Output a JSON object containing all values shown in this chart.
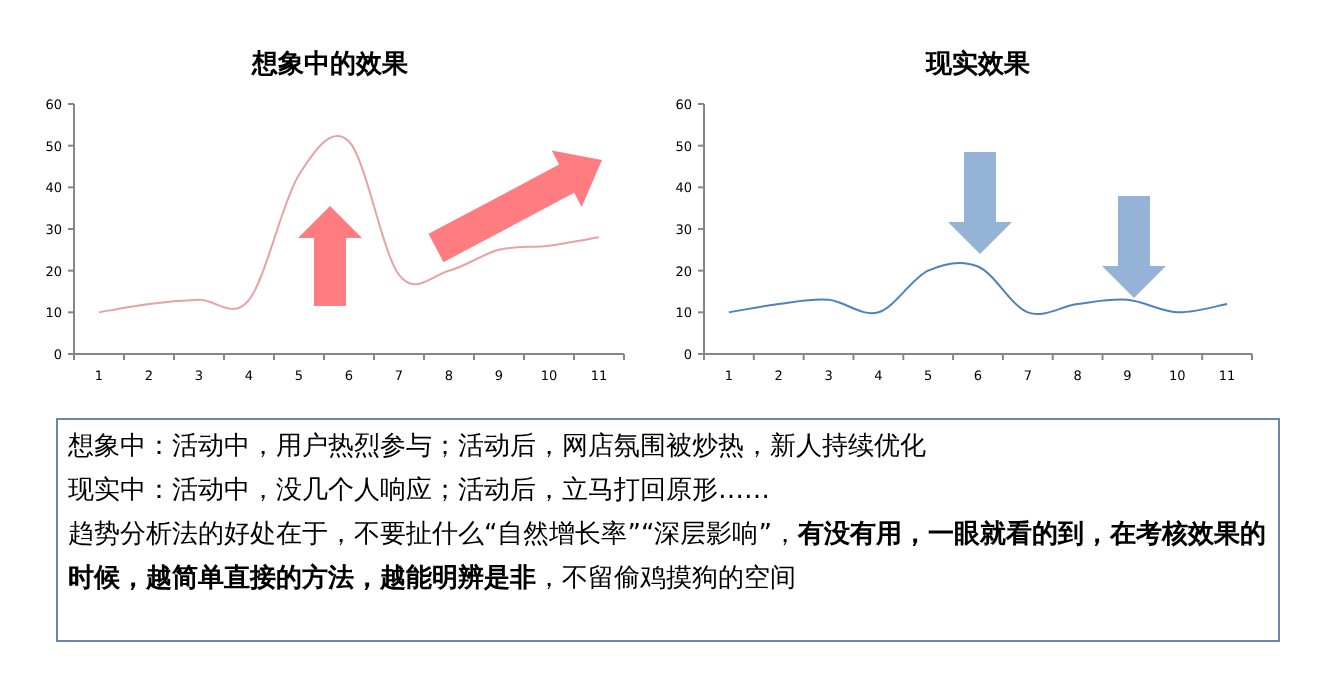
{
  "chart_data": [
    {
      "type": "line",
      "title": "想象中的效果",
      "categories": [
        "1",
        "2",
        "3",
        "4",
        "5",
        "6",
        "7",
        "8",
        "9",
        "10",
        "11"
      ],
      "ylim": [
        0,
        60
      ],
      "yticks": [
        0,
        10,
        20,
        30,
        40,
        50,
        60
      ],
      "grid": false,
      "marker": "none",
      "series": [
        {
          "color": "#e6a3a3",
          "values": [
            10,
            12,
            13,
            13,
            43,
            51,
            19,
            20,
            25,
            26,
            28
          ]
        }
      ]
    },
    {
      "type": "line",
      "title": "现实效果",
      "categories": [
        "1",
        "2",
        "3",
        "4",
        "5",
        "6",
        "7",
        "8",
        "9",
        "10",
        "11"
      ],
      "ylim": [
        0,
        60
      ],
      "yticks": [
        0,
        10,
        20,
        30,
        40,
        50,
        60
      ],
      "grid": false,
      "marker": "none",
      "series": [
        {
          "color": "#4f81bd",
          "values": [
            10,
            12,
            13,
            10,
            20,
            21,
            10,
            12,
            13,
            10,
            12
          ]
        }
      ]
    },
    {
      "type": "other",
      "annotations": [
        "想象中：活动中，用户热烈参与；活动后，网店氛围被炒热，新人持续优化",
        "现实中：活动中，没几个人响应；活动后，立马打回原形……",
        "趋势分析法的好处在于，不要扯什么“自然增长率”“深层影响”，**有没有用，一眼就看的到，在考核效果的时候，越简单直接的方法，越能明辨是非**，不留偷鸡摸狗的空间"
      ]
    }
  ]
}
